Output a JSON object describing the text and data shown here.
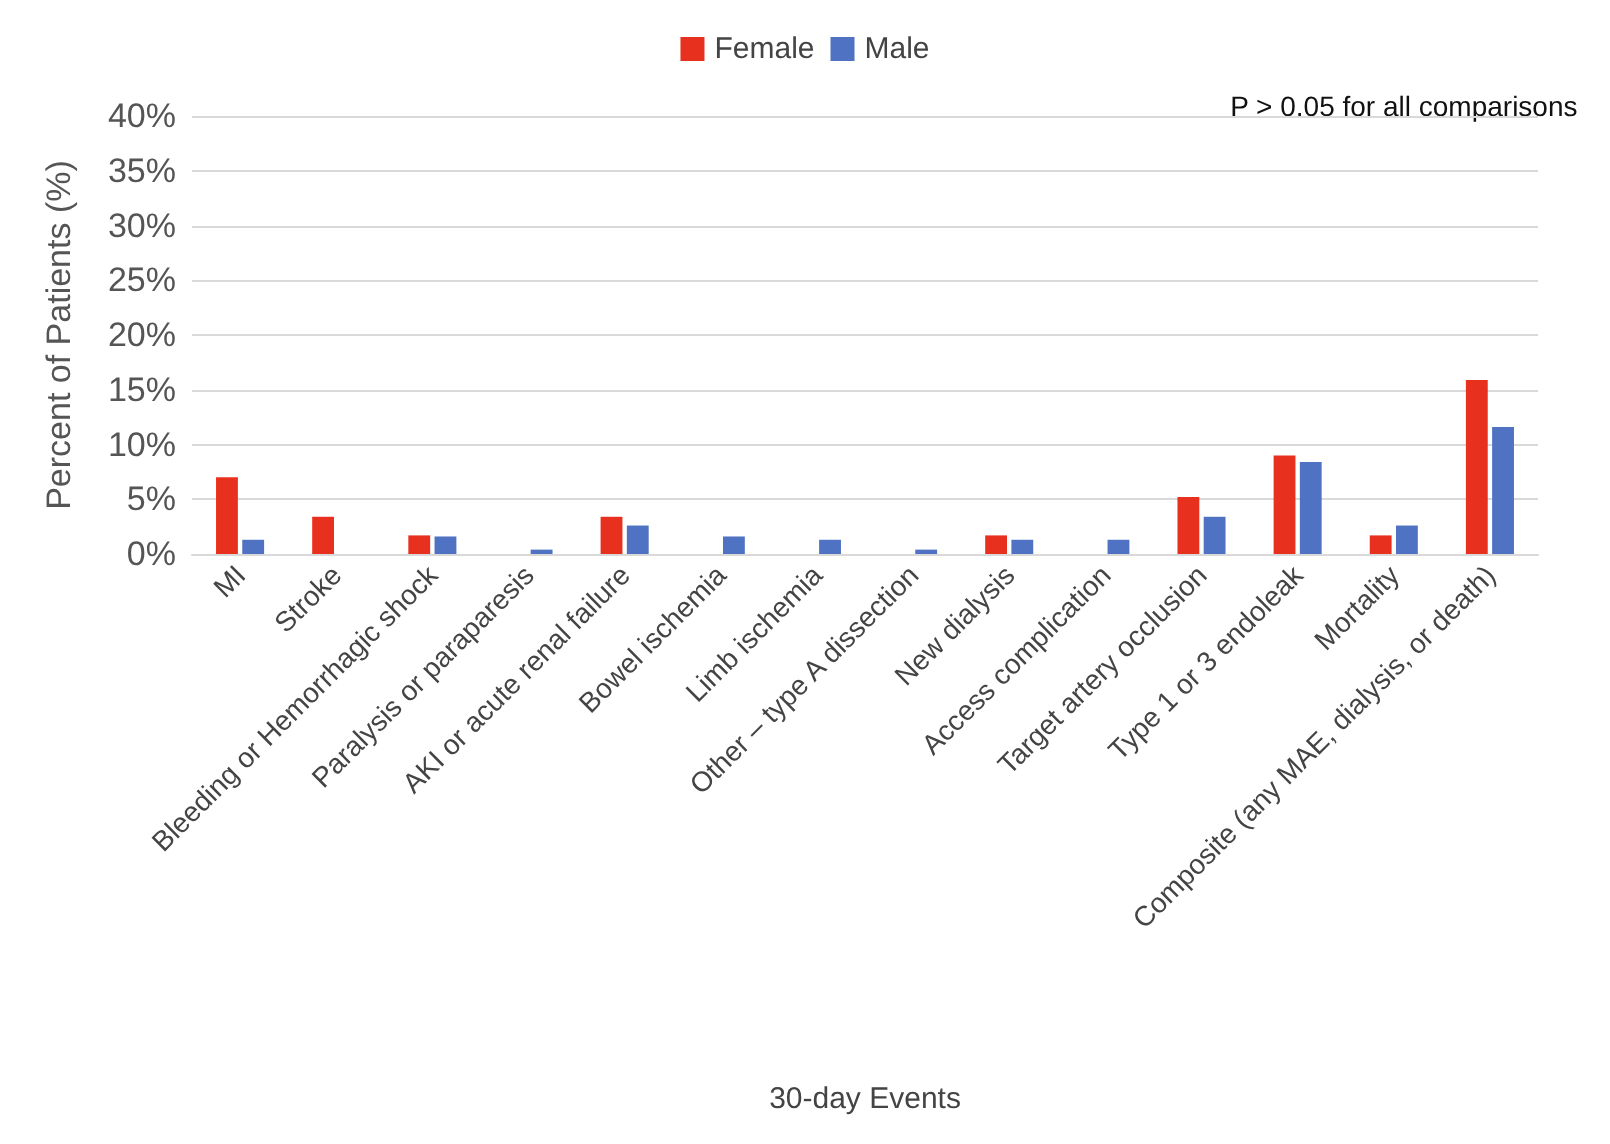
{
  "chart_data": {
    "type": "bar",
    "xlabel": "30-day Events",
    "ylabel": "Percent of Patients (%)",
    "categories": [
      "MI",
      "Stroke",
      "Bleeding or Hemorrhagic shock",
      "Paralysis or paraparesis",
      "AKI or acute renal failure",
      "Bowel ischemia",
      "Limb ischemia",
      "Other – type A dissection",
      "New dialysis",
      "Access complication",
      "Target artery occlusion",
      "Type 1 or 3 endoleak",
      "Mortality",
      "Composite (any MAE, dialysis, or death)"
    ],
    "series": [
      {
        "name": "Female",
        "color": "#e8301f",
        "values": [
          7.0,
          3.4,
          1.7,
          0,
          3.4,
          0,
          0,
          0,
          1.7,
          0,
          5.2,
          9.0,
          1.7,
          15.9
        ]
      },
      {
        "name": "Male",
        "color": "#4f72c2",
        "values": [
          1.3,
          0,
          1.6,
          0.4,
          2.6,
          1.6,
          1.3,
          0.4,
          1.3,
          1.3,
          3.4,
          8.4,
          2.6,
          11.6
        ]
      }
    ],
    "ylim": [
      0,
      40
    ],
    "yticks": [
      {
        "value": 0,
        "label": "0%"
      },
      {
        "value": 5,
        "label": "5%"
      },
      {
        "value": 10,
        "label": "10%"
      },
      {
        "value": 15,
        "label": "15%"
      },
      {
        "value": 20,
        "label": "20%"
      },
      {
        "value": 25,
        "label": "25%"
      },
      {
        "value": 30,
        "label": "30%"
      },
      {
        "value": 35,
        "label": "35%"
      },
      {
        "value": 40,
        "label": "40%"
      }
    ],
    "grid": "y",
    "legend": "top",
    "annotations": [
      "P > 0.05 for all comparisons"
    ]
  }
}
